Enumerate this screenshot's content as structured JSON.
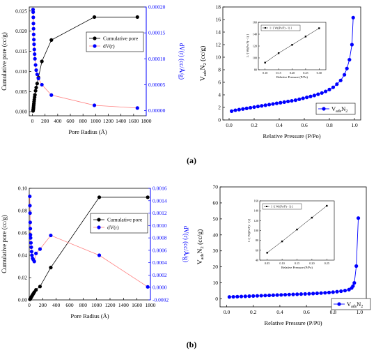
{
  "panel_labels": [
    "(a)",
    "(b)"
  ],
  "chart_data": [
    {
      "id": "a-left",
      "type": "line",
      "xlabel": "Pore Radius (Å)",
      "ylabel": "Cumulative pore (cc/g)",
      "y2label": "dV(r) (cc/Å/g)",
      "xlim": [
        -50,
        1800
      ],
      "xticks": [
        "0",
        "200",
        "400",
        "600",
        "800",
        "1000",
        "1200",
        "1400",
        "1600",
        "1800"
      ],
      "ylim": [
        -0.001,
        0.026
      ],
      "yticks": [
        "0.000",
        "0.005",
        "0.010",
        "0.015",
        "0.020",
        "0.025"
      ],
      "y2lim": [
        -1e-05,
        0.0002
      ],
      "y2ticks": [
        "0.00000",
        "0.00005",
        "0.00010",
        "0.00015",
        "0.00020"
      ],
      "legend": "top-right",
      "series": [
        {
          "name": "Cumulative pore",
          "axis": "left",
          "color": "#000000",
          "x": [
            10,
            12,
            14,
            16,
            18,
            20,
            23,
            26,
            30,
            35,
            40,
            50,
            60,
            75,
            95,
            150,
            300,
            980,
            1660
          ],
          "y": [
            0.0002,
            0.0004,
            0.0006,
            0.0009,
            0.0012,
            0.0016,
            0.002,
            0.0025,
            0.003,
            0.0036,
            0.0042,
            0.0052,
            0.006,
            0.007,
            0.0085,
            0.0125,
            0.0178,
            0.0235,
            0.0235
          ]
        },
        {
          "name": "dV(r)",
          "axis": "right",
          "color": "#0000ff",
          "line": "#ff8080",
          "x": [
            10,
            12,
            14,
            16,
            18,
            20,
            23,
            26,
            30,
            35,
            40,
            50,
            60,
            75,
            95,
            150,
            300,
            980,
            1660
          ],
          "y": [
            0.000195,
            0.00019,
            0.00018,
            0.000168,
            0.000158,
            0.000147,
            0.000137,
            0.000128,
            0.000118,
            0.000109,
            0.0001,
            8.8e-05,
            7.8e-05,
            7e-05,
            6.2e-05,
            5e-05,
            3e-05,
            1.02e-05,
            5e-06
          ]
        }
      ]
    },
    {
      "id": "a-right",
      "type": "line",
      "xlabel": "Relative Pressure (P/Po)",
      "ylabel_main": "V",
      "ylabel_sub": "ads",
      "ylabel_tail": "N",
      "ylabel_sub2": "2",
      "ylabel_unit": " (cc/g)",
      "xlim": [
        -0.05,
        1.05
      ],
      "xticks": [
        "0.0",
        "0.2",
        "0.4",
        "0.6",
        "0.8",
        "1.0"
      ],
      "ylim": [
        0,
        18
      ],
      "yticks": [
        "0",
        "2",
        "4",
        "6",
        "8",
        "10",
        "12",
        "14",
        "16",
        "18"
      ],
      "legend": "bottom-right",
      "series": [
        {
          "name_main": "V",
          "name_sub": "ads",
          "name_tail": "N",
          "name_sub2": "2",
          "color": "#0000ff",
          "x": [
            0.02,
            0.05,
            0.08,
            0.11,
            0.14,
            0.17,
            0.2,
            0.23,
            0.26,
            0.29,
            0.32,
            0.35,
            0.38,
            0.41,
            0.44,
            0.47,
            0.5,
            0.53,
            0.56,
            0.59,
            0.62,
            0.65,
            0.68,
            0.71,
            0.74,
            0.77,
            0.8,
            0.83,
            0.86,
            0.89,
            0.92,
            0.94,
            0.96,
            0.98,
            0.99
          ],
          "y": [
            1.4,
            1.55,
            1.65,
            1.75,
            1.85,
            1.95,
            2.05,
            2.15,
            2.25,
            2.35,
            2.45,
            2.55,
            2.65,
            2.75,
            2.85,
            2.95,
            3.05,
            3.15,
            3.3,
            3.45,
            3.6,
            3.75,
            3.9,
            4.1,
            4.3,
            4.55,
            4.85,
            5.2,
            5.7,
            6.3,
            7.2,
            8.2,
            9.6,
            12.0,
            16.3
          ]
        }
      ],
      "inset": {
        "xlabel": "Relative Pressure (P/Po)",
        "ylabel": "1 / [ W((Po/P) - 1) ]",
        "legend": "1 / [ W((Po/P) - 1) ]",
        "xlim": [
          0.075,
          0.325
        ],
        "xticks": [
          "0.10",
          "0.15",
          "0.20",
          "0.25",
          "0.30"
        ],
        "ylim": [
          80,
          160
        ],
        "yticks": [
          "80",
          "100",
          "120",
          "140",
          "160"
        ],
        "x": [
          0.1,
          0.15,
          0.2,
          0.25,
          0.3
        ],
        "y": [
          92,
          108,
          122,
          136,
          150
        ]
      }
    },
    {
      "id": "b-left",
      "type": "line",
      "xlabel": "Pore Radius (Å)",
      "ylabel": "Cumulative pore (cc/g)",
      "y2label": "dV(r) (cc/Å/g)",
      "xlim": [
        0,
        1800
      ],
      "xticks": [
        "0",
        "200",
        "400",
        "600",
        "800",
        "1000",
        "1200",
        "1400",
        "1600",
        "1800"
      ],
      "ylim": [
        0,
        0.1
      ],
      "yticks": [
        "0.00",
        "0.02",
        "0.04",
        "0.06",
        "0.08",
        "0.10"
      ],
      "y2lim": [
        -0.0002,
        0.0016
      ],
      "y2ticks": [
        "-0.0002",
        "0.0000",
        "0.0002",
        "0.0004",
        "0.0006",
        "0.0008",
        "0.0010",
        "0.0012",
        "0.0014",
        "0.0016"
      ],
      "legend": "top-right",
      "series": [
        {
          "name": "Cumulative pore",
          "axis": "left",
          "color": "#000000",
          "x": [
            10,
            15,
            20,
            25,
            30,
            40,
            50,
            60,
            75,
            100,
            160,
            320,
            1040,
            1760
          ],
          "y": [
            0.0005,
            0.001,
            0.0015,
            0.002,
            0.0025,
            0.0035,
            0.0045,
            0.0055,
            0.007,
            0.009,
            0.012,
            0.029,
            0.092,
            0.092
          ]
        },
        {
          "name": "dV(r)",
          "axis": "right",
          "color": "#0000ff",
          "line": "#ff8080",
          "x": [
            8,
            10,
            12,
            14,
            16,
            18,
            20,
            25,
            30,
            35,
            40,
            50,
            60,
            75,
            100,
            160,
            320,
            1040,
            1760
          ],
          "y": [
            0.00147,
            0.00132,
            0.0012,
            0.00105,
            0.00095,
            0.00085,
            0.0008,
            0.00072,
            0.00065,
            0.00058,
            0.00052,
            0.00047,
            0.00045,
            0.00042,
            0.00055,
            0.00062,
            0.00084,
            0.00052,
            1e-05
          ]
        }
      ]
    },
    {
      "id": "b-right",
      "type": "line",
      "xlabel": "Relative Pressure (P/P0)",
      "ylabel_main": "V",
      "ylabel_sub": "ads",
      "ylabel_tail": "N",
      "ylabel_sub2": "2",
      "ylabel_unit": " (cc/g)",
      "xlim": [
        -0.05,
        1.05
      ],
      "xticks": [
        "0.0",
        "0.2",
        "0.4",
        "0.6",
        "0.8",
        "1.0"
      ],
      "ylim": [
        -5,
        70
      ],
      "yticks": [
        "0",
        "10",
        "20",
        "30",
        "40",
        "50",
        "60",
        "70"
      ],
      "legend": "bottom-right",
      "series": [
        {
          "name_main": "V",
          "name_sub": "ads",
          "name_tail": "N",
          "name_sub2": "2",
          "color": "#0000ff",
          "x": [
            0.02,
            0.05,
            0.08,
            0.11,
            0.14,
            0.17,
            0.2,
            0.23,
            0.26,
            0.29,
            0.32,
            0.35,
            0.38,
            0.41,
            0.44,
            0.47,
            0.5,
            0.53,
            0.56,
            0.59,
            0.62,
            0.65,
            0.68,
            0.71,
            0.74,
            0.77,
            0.8,
            0.83,
            0.86,
            0.89,
            0.92,
            0.94,
            0.95,
            0.96,
            0.975,
            0.99
          ],
          "y": [
            1.2,
            1.3,
            1.4,
            1.5,
            1.6,
            1.7,
            1.8,
            1.9,
            2.0,
            2.1,
            2.2,
            2.3,
            2.4,
            2.5,
            2.6,
            2.7,
            2.8,
            2.9,
            3.0,
            3.1,
            3.2,
            3.35,
            3.5,
            3.65,
            3.8,
            4.0,
            4.2,
            4.5,
            4.8,
            5.2,
            5.8,
            6.8,
            8.0,
            10.0,
            20.5,
            50.5
          ]
        }
      ],
      "inset": {
        "xlabel": "Relative Pressure (P/Po)",
        "ylabel": "1 / [ W((Po/P) - 1) ]",
        "legend": "1 / [ W((Po/P) - 1) ]",
        "xlim": [
          0.025,
          0.275
        ],
        "xticks": [
          "0.05",
          "0.10",
          "0.15",
          "0.20",
          "0.25"
        ],
        "ylim": [
          40,
          160
        ],
        "yticks": [
          "40",
          "60",
          "80",
          "100",
          "120",
          "140",
          "160"
        ],
        "x": [
          0.05,
          0.1,
          0.15,
          0.2,
          0.25
        ],
        "y": [
          55,
          78,
          102,
          126,
          150
        ]
      }
    }
  ]
}
